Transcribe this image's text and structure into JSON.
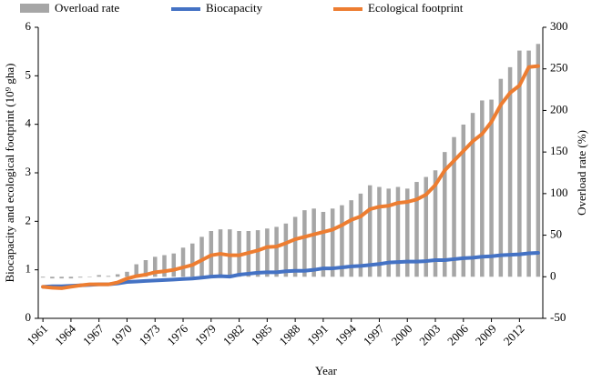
{
  "chart_data": {
    "type": "bar-line",
    "x_label": "Year",
    "y_label": "Biocapacity and ecological footprint (10⁹ gha)",
    "y2_label": "Overload rate (%)",
    "categories": [
      "1961",
      null,
      null,
      "1964",
      null,
      null,
      "1967",
      null,
      null,
      "1970",
      null,
      null,
      "1973",
      null,
      null,
      "1976",
      null,
      null,
      "1979",
      null,
      null,
      "1982",
      null,
      null,
      "1985",
      null,
      null,
      "1988",
      null,
      null,
      "1991",
      null,
      null,
      "1994",
      null,
      null,
      "1997",
      null,
      null,
      "2000",
      null,
      null,
      "2003",
      null,
      null,
      "2006",
      null,
      null,
      "2009",
      null,
      null,
      "2012",
      null,
      null
    ],
    "ylim": [
      0,
      6
    ],
    "yticks": [
      0,
      1,
      2,
      3,
      4,
      5,
      6
    ],
    "y2lim": [
      -50,
      300
    ],
    "y2ticks": [
      -50,
      0,
      50,
      100,
      150,
      200,
      250,
      300
    ],
    "series": [
      {
        "name": "Overload rate",
        "kind": "bar",
        "axis": "y2",
        "color": "#a6a6a6",
        "values": [
          -1,
          -2,
          -2,
          -2,
          -1,
          0,
          2,
          1,
          3,
          6,
          15,
          20,
          24,
          26,
          28,
          35,
          40,
          48,
          55,
          57,
          57,
          55,
          55,
          56,
          58,
          60,
          64,
          72,
          80,
          82,
          78,
          82,
          86,
          92,
          100,
          110,
          108,
          106,
          108,
          106,
          114,
          120,
          128,
          150,
          168,
          183,
          197,
          212,
          213,
          238,
          252,
          272,
          272,
          280
        ]
      },
      {
        "name": "Biocapacity",
        "kind": "line",
        "axis": "y",
        "color": "#4472c4",
        "values": [
          0.65,
          0.66,
          0.66,
          0.67,
          0.68,
          0.69,
          0.7,
          0.7,
          0.72,
          0.75,
          0.76,
          0.77,
          0.78,
          0.79,
          0.8,
          0.81,
          0.82,
          0.84,
          0.86,
          0.87,
          0.86,
          0.9,
          0.92,
          0.94,
          0.95,
          0.95,
          0.97,
          0.98,
          0.98,
          1.0,
          1.03,
          1.03,
          1.05,
          1.07,
          1.08,
          1.1,
          1.12,
          1.15,
          1.16,
          1.17,
          1.17,
          1.18,
          1.2,
          1.2,
          1.22,
          1.24,
          1.25,
          1.27,
          1.28,
          1.3,
          1.31,
          1.32,
          1.34,
          1.35
        ]
      },
      {
        "name": "Ecological footprint",
        "kind": "line",
        "axis": "y",
        "color": "#ed7d31",
        "values": [
          0.65,
          0.63,
          0.62,
          0.65,
          0.68,
          0.7,
          0.7,
          0.7,
          0.74,
          0.82,
          0.87,
          0.9,
          0.95,
          0.97,
          1.0,
          1.05,
          1.1,
          1.2,
          1.3,
          1.33,
          1.3,
          1.3,
          1.35,
          1.4,
          1.47,
          1.48,
          1.55,
          1.63,
          1.68,
          1.73,
          1.78,
          1.83,
          1.92,
          2.03,
          2.1,
          2.25,
          2.3,
          2.32,
          2.38,
          2.4,
          2.45,
          2.55,
          2.75,
          3.05,
          3.25,
          3.45,
          3.65,
          3.8,
          4.05,
          4.4,
          4.65,
          4.8,
          5.18,
          5.2
        ]
      }
    ]
  }
}
